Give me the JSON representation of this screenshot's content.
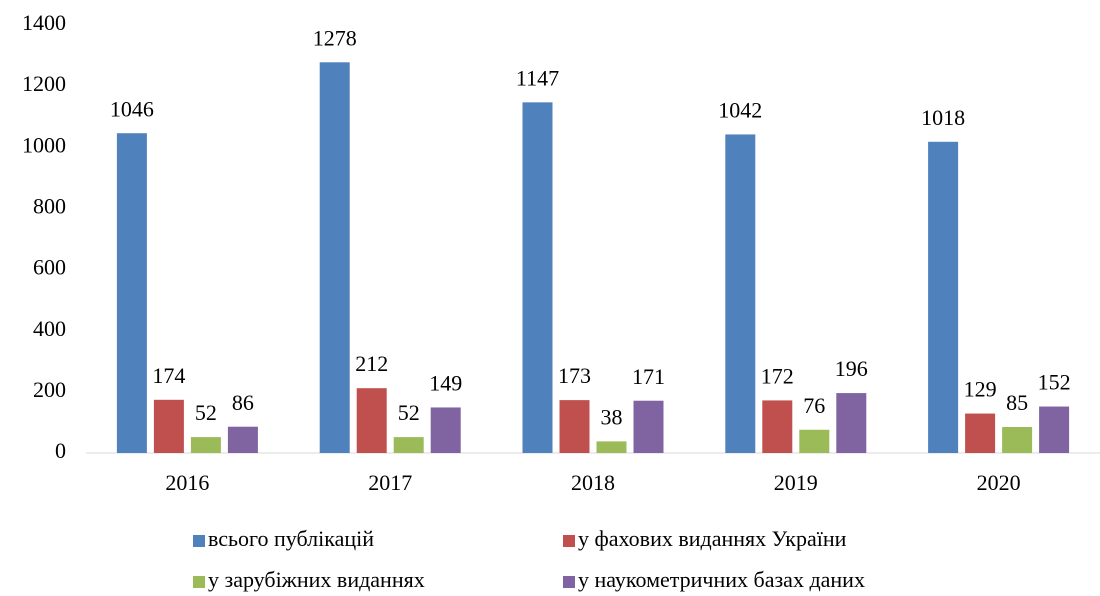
{
  "chart_data": {
    "type": "bar",
    "categories": [
      "2016",
      "2017",
      "2018",
      "2019",
      "2020"
    ],
    "series": [
      {
        "name": "всього публікацій",
        "color": "#4f81bd",
        "values": [
          1046,
          1278,
          1147,
          1042,
          1018
        ]
      },
      {
        "name": "у фахових виданнях України",
        "color": "#c0504d",
        "values": [
          174,
          212,
          173,
          172,
          129
        ]
      },
      {
        "name": "у зарубіжних виданнях",
        "color": "#9bbb59",
        "values": [
          52,
          52,
          38,
          76,
          85
        ]
      },
      {
        "name": "у наукометричних базах даних",
        "color": "#8064a2",
        "values": [
          86,
          149,
          171,
          196,
          152
        ]
      }
    ],
    "ylim": [
      0,
      1400
    ],
    "yticks": [
      0,
      200,
      400,
      600,
      800,
      1000,
      1200,
      1400
    ],
    "grid": false,
    "legend": "bottom"
  }
}
